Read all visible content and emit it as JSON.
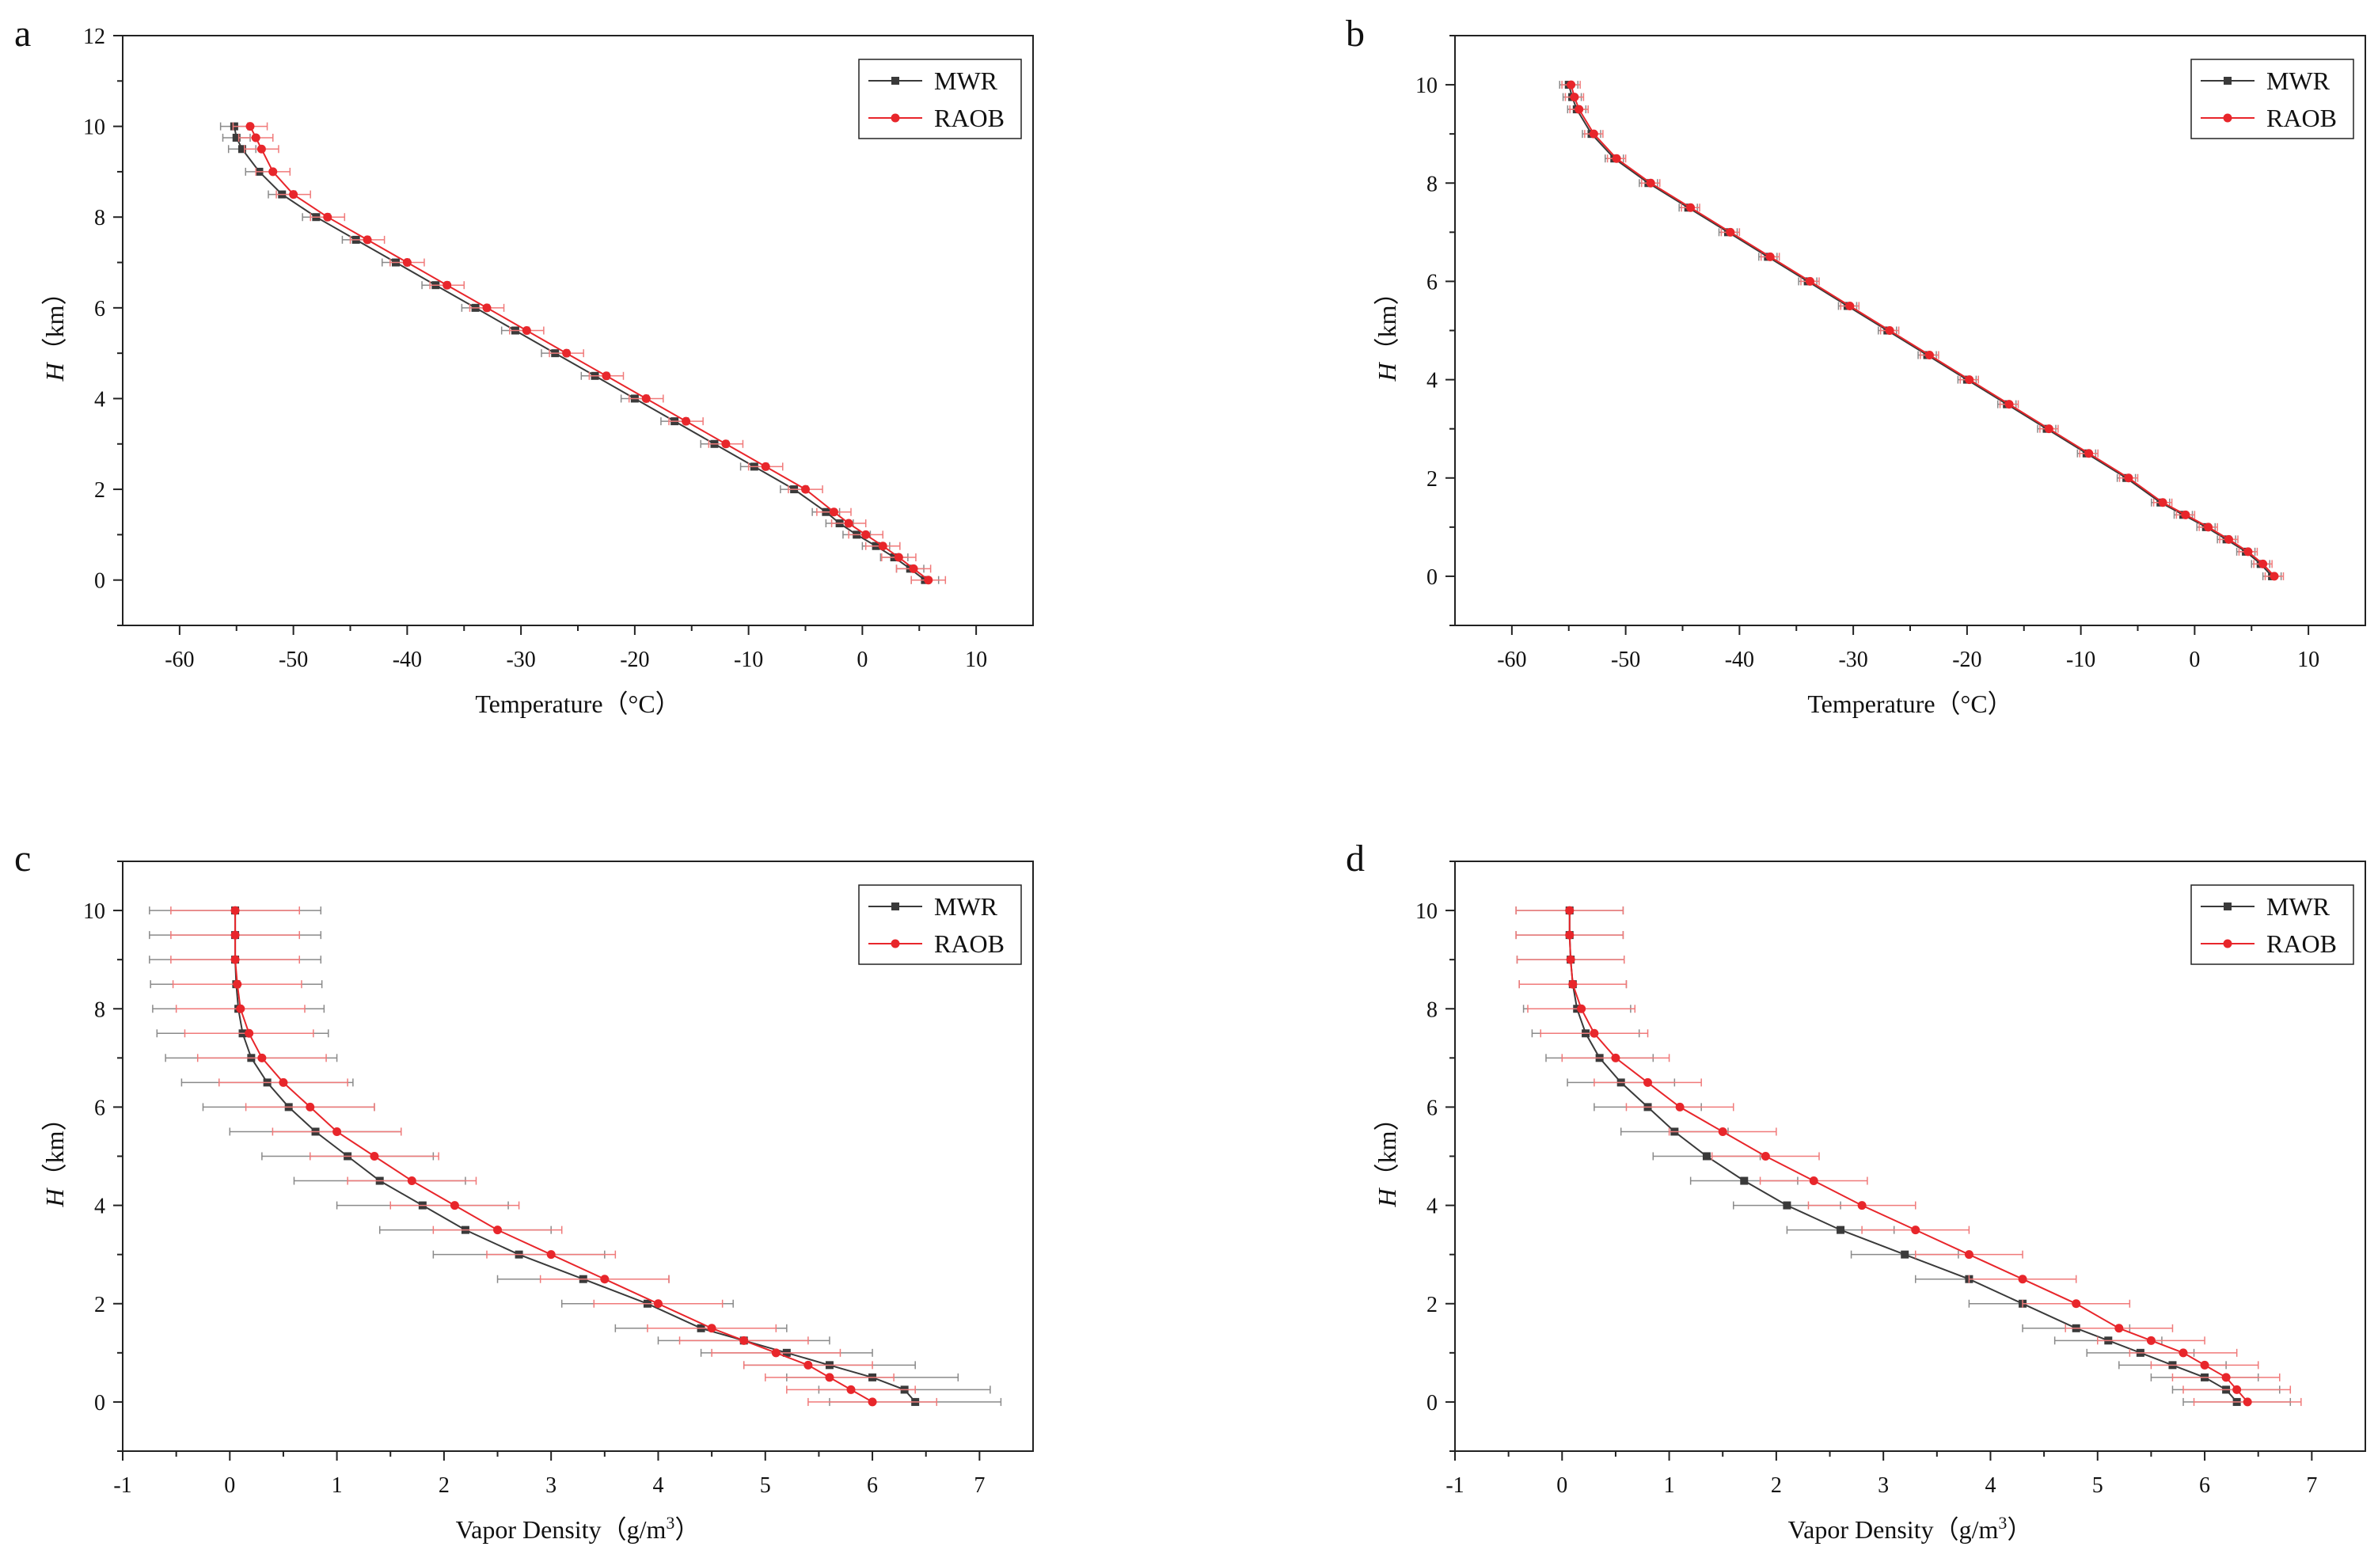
{
  "colors": {
    "MWR": "#3a3a3a",
    "RAOB": "#e8262b",
    "MWR_err": "#8a8a8a",
    "RAOB_err": "#f07a7a"
  },
  "chart_data": [
    {
      "panel": "a",
      "type": "line",
      "xlabel": "Temperature（°C）",
      "ylabel_var": "H",
      "ylabel_unit": "（km）",
      "xlim": [
        -65,
        15
      ],
      "ylim": [
        -1,
        12
      ],
      "xticks": [
        -60,
        -50,
        -40,
        -30,
        -20,
        -10,
        0,
        10
      ],
      "yticks": [
        0,
        2,
        4,
        6,
        8,
        10,
        12
      ],
      "legend": "top-right",
      "legend_entries": [
        "MWR",
        "RAOB"
      ],
      "series": [
        {
          "name": "MWR",
          "x": [
            5.5,
            4.2,
            2.8,
            1.2,
            -0.5,
            -2.0,
            -3.2,
            -6.0,
            -9.5,
            -13.0,
            -16.5,
            -20.0,
            -23.5,
            -27.0,
            -30.5,
            -34.0,
            -37.5,
            -41.0,
            -44.5,
            -48.0,
            -51.0,
            -53.0,
            -54.5,
            -55.0,
            -55.2
          ],
          "y": [
            0.0,
            0.25,
            0.5,
            0.75,
            1.0,
            1.25,
            1.5,
            2.0,
            2.5,
            3.0,
            3.5,
            4.0,
            4.5,
            5.0,
            5.5,
            6.0,
            6.5,
            7.0,
            7.5,
            8.0,
            8.5,
            9.0,
            9.5,
            9.75,
            10.0
          ],
          "xerr": 1.2
        },
        {
          "name": "RAOB",
          "x": [
            5.8,
            4.5,
            3.2,
            1.8,
            0.3,
            -1.2,
            -2.5,
            -5.0,
            -8.5,
            -12.0,
            -15.5,
            -19.0,
            -22.5,
            -26.0,
            -29.5,
            -33.0,
            -36.5,
            -40.0,
            -43.5,
            -47.0,
            -50.0,
            -51.8,
            -52.8,
            -53.3,
            -53.8
          ],
          "y": [
            0.0,
            0.25,
            0.5,
            0.75,
            1.0,
            1.25,
            1.5,
            2.0,
            2.5,
            3.0,
            3.5,
            4.0,
            4.5,
            5.0,
            5.5,
            6.0,
            6.5,
            7.0,
            7.5,
            8.0,
            8.5,
            9.0,
            9.5,
            9.75,
            10.0
          ],
          "xerr": 1.5
        }
      ]
    },
    {
      "panel": "b",
      "type": "line",
      "xlabel": "Temperature（°C）",
      "ylabel_var": "H",
      "ylabel_unit": "（km）",
      "xlim": [
        -65,
        15
      ],
      "ylim": [
        -1,
        11
      ],
      "xticks": [
        -60,
        -50,
        -40,
        -30,
        -20,
        -10,
        0,
        10
      ],
      "yticks": [
        0,
        2,
        4,
        6,
        8,
        10
      ],
      "legend": "top-right",
      "legend_entries": [
        "MWR",
        "RAOB"
      ],
      "series": [
        {
          "name": "MWR",
          "x": [
            6.8,
            5.8,
            4.5,
            2.8,
            1.0,
            -1.0,
            -3.0,
            -6.0,
            -9.5,
            -13.0,
            -16.5,
            -20.0,
            -23.5,
            -27.0,
            -30.5,
            -34.0,
            -37.5,
            -41.0,
            -44.5,
            -48.0,
            -51.0,
            -53.0,
            -54.3,
            -54.7,
            -55.0
          ],
          "y": [
            0.0,
            0.25,
            0.5,
            0.75,
            1.0,
            1.25,
            1.5,
            2.0,
            2.5,
            3.0,
            3.5,
            4.0,
            4.5,
            5.0,
            5.5,
            6.0,
            6.5,
            7.0,
            7.5,
            8.0,
            8.5,
            9.0,
            9.5,
            9.75,
            10.0
          ],
          "xerr": 0.8
        },
        {
          "name": "RAOB",
          "x": [
            7.0,
            6.0,
            4.7,
            3.0,
            1.2,
            -0.8,
            -2.8,
            -5.8,
            -9.3,
            -12.8,
            -16.3,
            -19.8,
            -23.3,
            -26.8,
            -30.3,
            -33.8,
            -37.3,
            -40.8,
            -44.3,
            -47.8,
            -50.8,
            -52.8,
            -54.1,
            -54.5,
            -54.8
          ],
          "y": [
            0.0,
            0.25,
            0.5,
            0.75,
            1.0,
            1.25,
            1.5,
            2.0,
            2.5,
            3.0,
            3.5,
            4.0,
            4.5,
            5.0,
            5.5,
            6.0,
            6.5,
            7.0,
            7.5,
            8.0,
            8.5,
            9.0,
            9.5,
            9.75,
            10.0
          ],
          "xerr": 0.8
        }
      ]
    },
    {
      "panel": "c",
      "type": "line",
      "xlabel": "Vapor Density（g/m",
      "xlabel_sup": "3",
      "xlabel_end": "）",
      "ylabel_var": "H",
      "ylabel_unit": "（km）",
      "xlim": [
        -1,
        7.5
      ],
      "ylim": [
        -1,
        11
      ],
      "xticks": [
        -1,
        0,
        1,
        2,
        3,
        4,
        5,
        6,
        7
      ],
      "yticks": [
        0,
        2,
        4,
        6,
        8,
        10
      ],
      "legend": "top-right",
      "legend_entries": [
        "MWR",
        "RAOB"
      ],
      "series": [
        {
          "name": "MWR",
          "x": [
            6.4,
            6.3,
            6.0,
            5.6,
            5.2,
            4.8,
            4.4,
            3.9,
            3.3,
            2.7,
            2.2,
            1.8,
            1.4,
            1.1,
            0.8,
            0.55,
            0.35,
            0.2,
            0.12,
            0.08,
            0.06,
            0.05,
            0.05,
            0.05
          ],
          "y": [
            0.0,
            0.25,
            0.5,
            0.75,
            1.0,
            1.25,
            1.5,
            2.0,
            2.5,
            3.0,
            3.5,
            4.0,
            4.5,
            5.0,
            5.5,
            6.0,
            6.5,
            7.0,
            7.5,
            8.0,
            8.5,
            9.0,
            9.5,
            10.0
          ],
          "xerr": 0.8
        },
        {
          "name": "RAOB",
          "x": [
            6.0,
            5.8,
            5.6,
            5.4,
            5.1,
            4.8,
            4.5,
            4.0,
            3.5,
            3.0,
            2.5,
            2.1,
            1.7,
            1.35,
            1.0,
            0.75,
            0.5,
            0.3,
            0.18,
            0.1,
            0.07,
            0.05,
            0.05,
            0.05
          ],
          "y": [
            0.0,
            0.25,
            0.5,
            0.75,
            1.0,
            1.25,
            1.5,
            2.0,
            2.5,
            3.0,
            3.5,
            4.0,
            4.5,
            5.0,
            5.5,
            6.0,
            6.5,
            7.0,
            7.5,
            8.0,
            8.5,
            9.0,
            9.5,
            10.0
          ],
          "xerr": 0.6
        }
      ]
    },
    {
      "panel": "d",
      "type": "line",
      "xlabel": "Vapor Density（g/m",
      "xlabel_sup": "3",
      "xlabel_end": "）",
      "ylabel_var": "H",
      "ylabel_unit": "（km）",
      "xlim": [
        -1,
        7.5
      ],
      "ylim": [
        -1,
        11
      ],
      "xticks": [
        -1,
        0,
        1,
        2,
        3,
        4,
        5,
        6,
        7
      ],
      "yticks": [
        0,
        2,
        4,
        6,
        8,
        10
      ],
      "legend": "top-right",
      "legend_entries": [
        "MWR",
        "RAOB"
      ],
      "series": [
        {
          "name": "MWR",
          "x": [
            6.3,
            6.2,
            6.0,
            5.7,
            5.4,
            5.1,
            4.8,
            4.3,
            3.8,
            3.2,
            2.6,
            2.1,
            1.7,
            1.35,
            1.05,
            0.8,
            0.55,
            0.35,
            0.22,
            0.14,
            0.1,
            0.08,
            0.07,
            0.07
          ],
          "y": [
            0.0,
            0.25,
            0.5,
            0.75,
            1.0,
            1.25,
            1.5,
            2.0,
            2.5,
            3.0,
            3.5,
            4.0,
            4.5,
            5.0,
            5.5,
            6.0,
            6.5,
            7.0,
            7.5,
            8.0,
            8.5,
            9.0,
            9.5,
            10.0
          ],
          "xerr": 0.5
        },
        {
          "name": "RAOB",
          "x": [
            6.4,
            6.3,
            6.2,
            6.0,
            5.8,
            5.5,
            5.2,
            4.8,
            4.3,
            3.8,
            3.3,
            2.8,
            2.35,
            1.9,
            1.5,
            1.1,
            0.8,
            0.5,
            0.3,
            0.18,
            0.1,
            0.08,
            0.07,
            0.07
          ],
          "y": [
            0.0,
            0.25,
            0.5,
            0.75,
            1.0,
            1.25,
            1.5,
            2.0,
            2.5,
            3.0,
            3.5,
            4.0,
            4.5,
            5.0,
            5.5,
            6.0,
            6.5,
            7.0,
            7.5,
            8.0,
            8.5,
            9.0,
            9.5,
            10.0
          ],
          "xerr": 0.5
        }
      ]
    }
  ]
}
